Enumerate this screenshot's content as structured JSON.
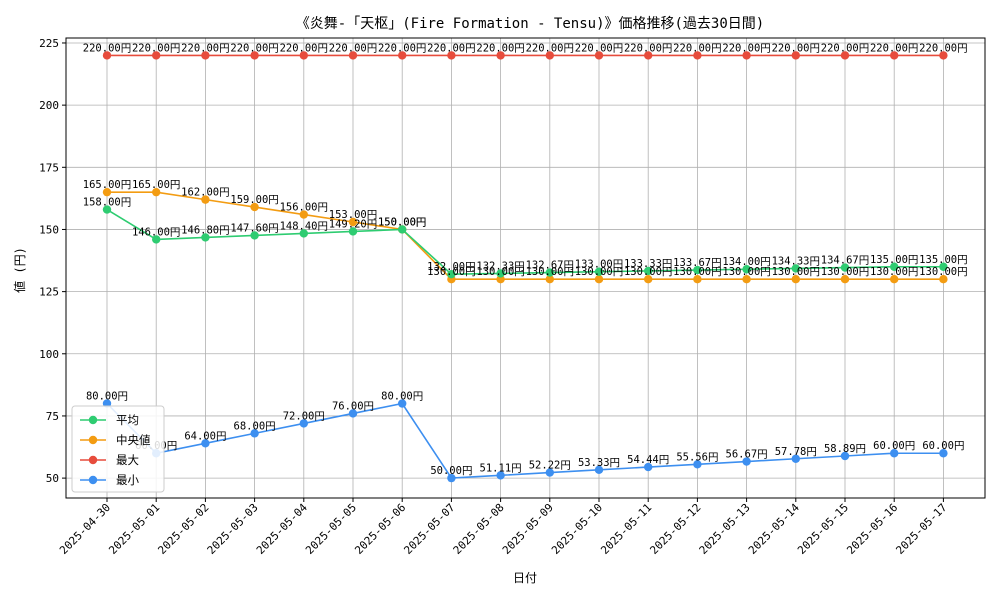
{
  "chart_data": {
    "type": "line",
    "title": "《炎舞-「天枢」(Fire Formation - Tensu)》価格推移(過去30日間)",
    "xlabel": "日付",
    "ylabel": "値 (円)",
    "ylim": [
      42,
      227
    ],
    "yticks": [
      50,
      75,
      100,
      125,
      150,
      175,
      200,
      225
    ],
    "grid": true,
    "legend_position": "lower-left",
    "label_suffix": "円",
    "categories": [
      "2025-04-30",
      "2025-05-01",
      "2025-05-02",
      "2025-05-03",
      "2025-05-04",
      "2025-05-05",
      "2025-05-06",
      "2025-05-07",
      "2025-05-08",
      "2025-05-09",
      "2025-05-10",
      "2025-05-11",
      "2025-05-12",
      "2025-05-13",
      "2025-05-14",
      "2025-05-15",
      "2025-05-16",
      "2025-05-17"
    ],
    "series": [
      {
        "name": "平均",
        "color": "#2ecc71",
        "values": [
          158.0,
          146.0,
          146.8,
          147.6,
          148.4,
          149.2,
          150.0,
          132.0,
          132.33,
          132.67,
          133.0,
          133.33,
          133.67,
          134.0,
          134.33,
          134.67,
          135.0,
          135.0
        ]
      },
      {
        "name": "中央値",
        "color": "#f39c12",
        "values": [
          165.0,
          165.0,
          162.0,
          159.0,
          156.0,
          153.0,
          150.0,
          130.0,
          130.0,
          130.0,
          130.0,
          130.0,
          130.0,
          130.0,
          130.0,
          130.0,
          130.0,
          130.0
        ]
      },
      {
        "name": "最大",
        "color": "#e74c3c",
        "values": [
          220.0,
          220.0,
          220.0,
          220.0,
          220.0,
          220.0,
          220.0,
          220.0,
          220.0,
          220.0,
          220.0,
          220.0,
          220.0,
          220.0,
          220.0,
          220.0,
          220.0,
          220.0
        ]
      },
      {
        "name": "最小",
        "color": "#3d8ff0",
        "values": [
          80.0,
          60.0,
          64.0,
          68.0,
          72.0,
          76.0,
          80.0,
          50.0,
          51.11,
          52.22,
          53.33,
          54.44,
          55.56,
          56.67,
          57.78,
          58.89,
          60.0,
          60.0
        ]
      }
    ]
  }
}
